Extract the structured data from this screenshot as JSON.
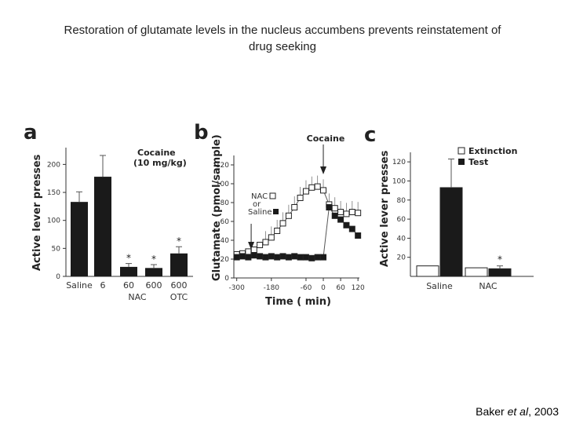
{
  "slide": {
    "title_line1": "Restoration of glutamate levels in the nucleus accumbens prevents reinstatement of",
    "title_line2": "drug seeking",
    "credit_author": "Baker ",
    "credit_etal": "et al",
    "credit_year": ", 2003"
  },
  "colors": {
    "bar": "#1a1a1a",
    "open": "#ffffff",
    "axis": "#333333"
  },
  "chart_data": [
    {
      "panel": "a",
      "type": "bar",
      "ylabel": "Active lever presses",
      "yticks": [
        0,
        50,
        100,
        150,
        200
      ],
      "ylim": [
        0,
        230
      ],
      "annotation_line1": "Cocaine",
      "annotation_line2": "(10 mg/kg)",
      "categories": [
        "Saline",
        "6",
        "60",
        "600",
        "600"
      ],
      "groups": [
        "NAC",
        "OTC"
      ],
      "values": [
        133,
        178,
        17,
        15,
        41
      ],
      "errors": [
        18,
        38,
        6,
        6,
        12
      ],
      "significant": [
        false,
        false,
        true,
        true,
        true
      ],
      "star": "*"
    },
    {
      "panel": "b",
      "type": "line",
      "ylabel": "Glutamate (pmol/sample)",
      "xlabel": "Time ( min)",
      "yticks": [
        0,
        20,
        40,
        60,
        80,
        100,
        120
      ],
      "ylim": [
        0,
        130
      ],
      "xticks": [
        -300,
        -180,
        -60,
        0,
        60,
        120
      ],
      "xlim": [
        -310,
        125
      ],
      "event_label": "Cocaine",
      "legend_nac": "NAC",
      "legend_or": "or",
      "legend_saline": "Saline",
      "series": [
        {
          "name": "NAC",
          "marker": "open-square",
          "x": [
            -300,
            -280,
            -260,
            -240,
            -220,
            -200,
            -180,
            -160,
            -140,
            -120,
            -100,
            -80,
            -60,
            -40,
            -20,
            0,
            20,
            40,
            60,
            80,
            100,
            120
          ],
          "y": [
            25,
            26,
            28,
            30,
            35,
            38,
            43,
            50,
            58,
            66,
            75,
            85,
            92,
            96,
            97,
            93,
            78,
            74,
            70,
            68,
            70,
            69
          ]
        },
        {
          "name": "Saline",
          "marker": "filled-square",
          "x": [
            -300,
            -280,
            -260,
            -240,
            -220,
            -200,
            -180,
            -160,
            -140,
            -120,
            -100,
            -80,
            -60,
            -40,
            -20,
            0,
            20,
            40,
            60,
            80,
            100,
            120
          ],
          "y": [
            22,
            23,
            22,
            24,
            23,
            22,
            23,
            22,
            23,
            22,
            23,
            22,
            22,
            21,
            22,
            22,
            75,
            66,
            62,
            56,
            52,
            45
          ]
        }
      ]
    },
    {
      "panel": "c",
      "type": "bar",
      "ylabel": "Active lever presses",
      "yticks": [
        20,
        40,
        60,
        80,
        100,
        120
      ],
      "ylim": [
        0,
        130
      ],
      "categories": [
        "Saline",
        "NAC"
      ],
      "series": [
        {
          "name": "Extinction",
          "fill": "open",
          "values": [
            11,
            9
          ],
          "errors": [
            0,
            0
          ]
        },
        {
          "name": "Test",
          "fill": "filled",
          "values": [
            93,
            8
          ],
          "errors": [
            30,
            3
          ]
        }
      ],
      "significant_on": "NAC",
      "star": "*"
    }
  ]
}
